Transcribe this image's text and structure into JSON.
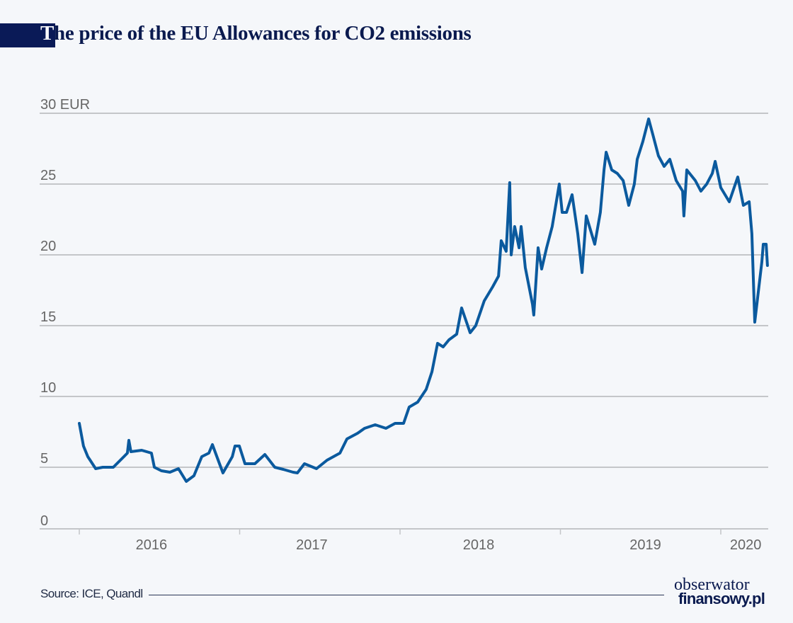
{
  "title_first": "T",
  "title_rest": "he price of the EU Allowances for CO2 emissions",
  "source": "Source: ICE, Quandl",
  "logo": {
    "line1": "obserwator",
    "line2": "finansowy.pl"
  },
  "colors": {
    "line": "#0b5a9e",
    "title": "#0a1a4f",
    "grid": "#c4c6c9",
    "background": "#f5f7fa"
  },
  "chart_data": {
    "type": "line",
    "title": "The price of the EU Allowances for CO2 emissions",
    "ylabel": "EUR",
    "ylim": [
      0,
      30
    ],
    "xlim": [
      2016.0,
      2020.3
    ],
    "grid": "horizontal",
    "y_ticks": [
      {
        "value": 30,
        "label": "30 EUR"
      },
      {
        "value": 25,
        "label": "25"
      },
      {
        "value": 20,
        "label": "20"
      },
      {
        "value": 15,
        "label": "15"
      },
      {
        "value": 10,
        "label": "10"
      },
      {
        "value": 5,
        "label": "5"
      },
      {
        "value": 0,
        "label": "0"
      }
    ],
    "x_ticks": [
      2016,
      2017,
      2018,
      2019,
      2020
    ],
    "x_labels": [
      {
        "label": "2016",
        "center": 2016.45
      },
      {
        "label": "2017",
        "center": 2017.45
      },
      {
        "label": "2018",
        "center": 2018.49
      },
      {
        "label": "2019",
        "center": 2019.53
      },
      {
        "label": "2020",
        "center": 2020.155
      }
    ],
    "series": [
      {
        "x": [
          2016.0,
          2016.026,
          2016.053,
          2016.102,
          2016.146,
          2016.212,
          2016.278,
          2016.3,
          2016.309,
          2016.322,
          2016.389,
          2016.45,
          2016.468,
          2016.512,
          2016.565,
          2016.618,
          2016.667,
          2016.715,
          2016.764,
          2016.808,
          2016.83,
          2016.874,
          2016.896,
          2016.954,
          2016.971,
          2016.998,
          2017.033,
          2017.095,
          2017.157,
          2017.219,
          2017.272,
          2017.333,
          2017.36,
          2017.404,
          2017.479,
          2017.545,
          2017.625,
          2017.669,
          2017.735,
          2017.779,
          2017.845,
          2017.912,
          2017.969,
          2018.022,
          2018.057,
          2018.11,
          2018.163,
          2018.199,
          2018.234,
          2018.269,
          2018.305,
          2018.353,
          2018.384,
          2018.437,
          2018.472,
          2018.525,
          2018.578,
          2018.614,
          2018.631,
          2018.662,
          2018.684,
          2018.693,
          2018.715,
          2018.742,
          2018.755,
          2018.781,
          2018.826,
          2018.834,
          2018.861,
          2018.883,
          2018.914,
          2018.949,
          2018.993,
          2019.011,
          2019.038,
          2019.073,
          2019.108,
          2019.135,
          2019.161,
          2019.214,
          2019.249,
          2019.272,
          2019.285,
          2019.32,
          2019.355,
          2019.391,
          2019.426,
          2019.461,
          2019.479,
          2019.514,
          2019.55,
          2019.576,
          2019.611,
          2019.647,
          2019.682,
          2019.722,
          2019.762,
          2019.77,
          2019.788,
          2019.841,
          2019.876,
          2019.912,
          2019.947,
          2019.965,
          2020.0,
          2020.053,
          2020.106,
          2020.141,
          2020.177,
          2020.194,
          2020.212,
          2020.23,
          2020.256,
          2020.265,
          2020.283,
          2020.291
        ],
        "values": [
          8.1,
          6.5,
          5.75,
          4.9,
          5.0,
          5.0,
          5.75,
          6.0,
          6.9,
          6.1,
          6.2,
          6.0,
          5.0,
          4.75,
          4.65,
          4.9,
          4.0,
          4.4,
          5.75,
          6.0,
          6.6,
          5.25,
          4.6,
          5.75,
          6.5,
          6.5,
          5.25,
          5.25,
          5.9,
          5.0,
          4.85,
          4.65,
          4.6,
          5.25,
          4.9,
          5.5,
          6.0,
          7.0,
          7.4,
          7.75,
          8.0,
          7.75,
          8.1,
          8.1,
          9.25,
          9.6,
          10.5,
          11.75,
          13.75,
          13.5,
          14.0,
          14.4,
          16.25,
          14.5,
          15.0,
          16.75,
          17.75,
          18.5,
          21.0,
          20.25,
          25.1,
          20.0,
          22.0,
          20.5,
          22.0,
          19.1,
          16.5,
          15.75,
          20.5,
          19.0,
          20.5,
          22.0,
          25.0,
          23.0,
          23.0,
          24.25,
          21.5,
          18.75,
          22.75,
          20.75,
          23.0,
          26.0,
          27.25,
          26.0,
          25.75,
          25.25,
          23.5,
          25.0,
          26.75,
          28.0,
          29.6,
          28.5,
          27.0,
          26.25,
          26.75,
          25.25,
          24.5,
          22.75,
          26.0,
          25.25,
          24.5,
          25.0,
          25.75,
          26.6,
          24.75,
          23.75,
          25.5,
          23.5,
          23.75,
          21.5,
          15.25,
          17.0,
          19.5,
          20.75,
          20.75,
          19.25
        ]
      }
    ]
  }
}
